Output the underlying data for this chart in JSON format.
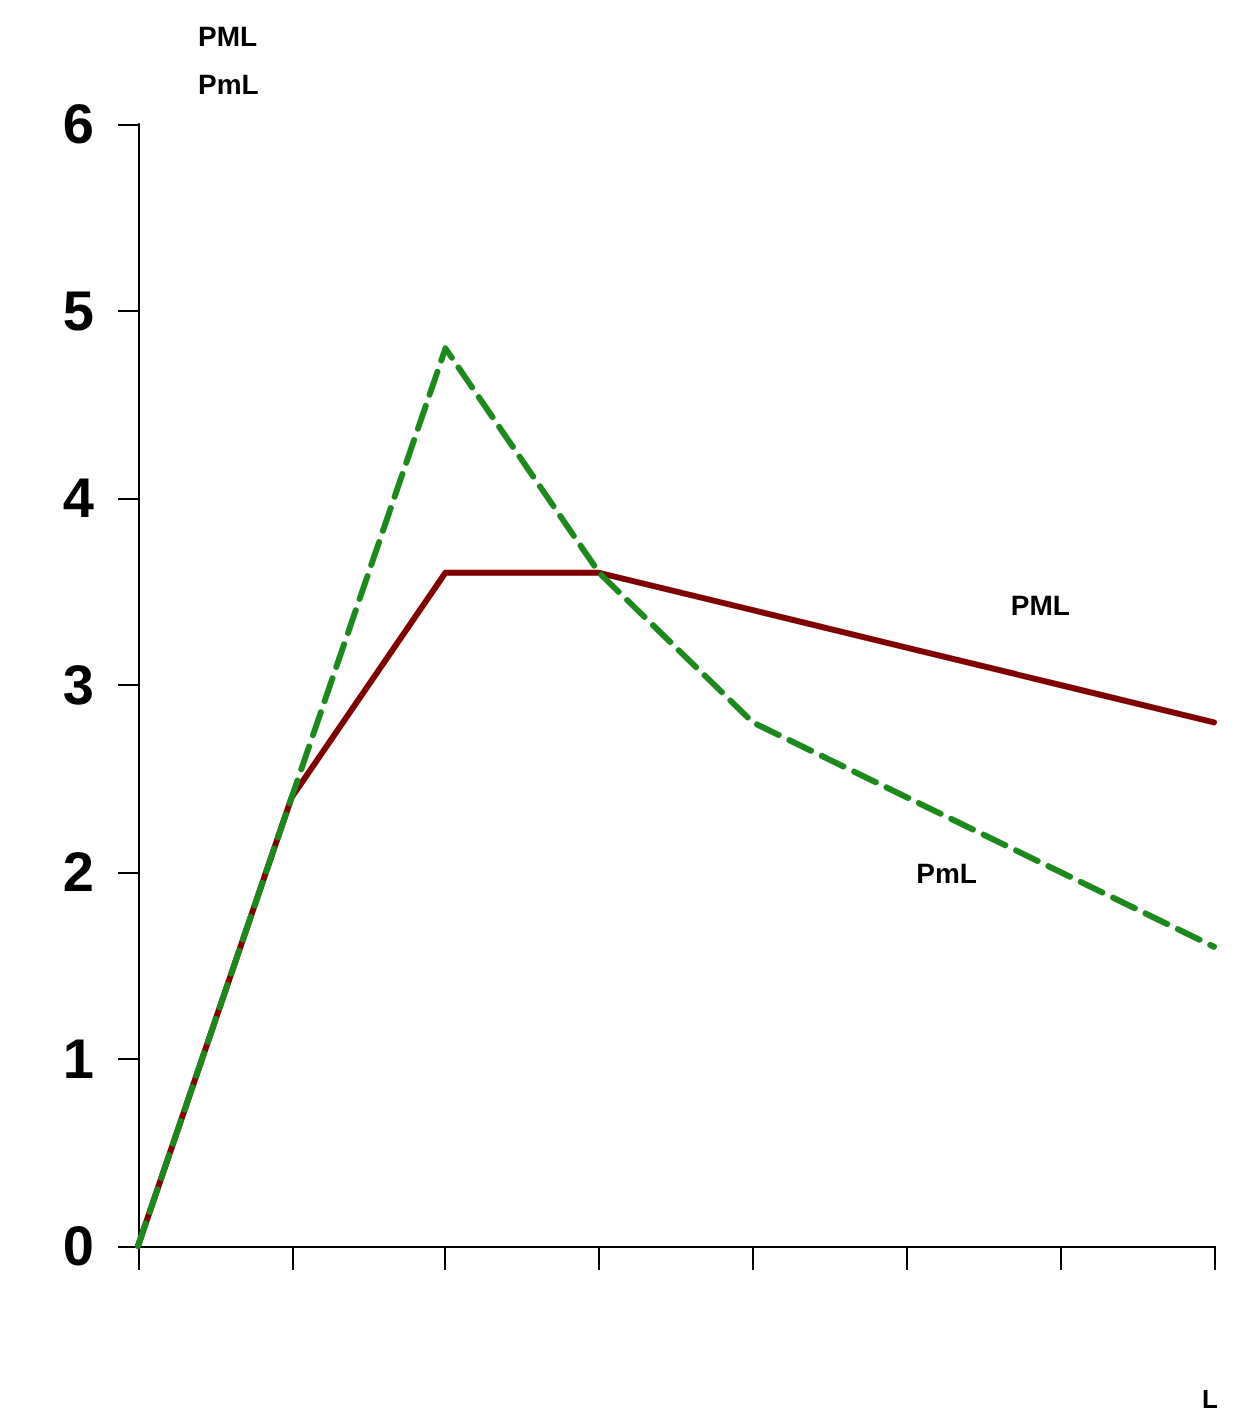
{
  "chart_data": {
    "type": "line",
    "ylabel": "PML\nPmL",
    "xlabel": "L",
    "categories": [
      null,
      null,
      null,
      null,
      null,
      null,
      null,
      null
    ],
    "series": [
      {
        "name": "PML",
        "color": "#800000",
        "line_style": "solid",
        "values": [
          0,
          2.4,
          3.6,
          3.6,
          3.4,
          3.2,
          3.0,
          2.8
        ]
      },
      {
        "name": "PmL",
        "color": "#1a8a1a",
        "line_style": "dashed",
        "values": [
          0,
          2.4,
          4.8,
          3.6,
          2.8,
          2.4,
          2.0,
          1.6
        ]
      }
    ],
    "ylim": [
      0,
      6
    ],
    "yticks": [
      0,
      1,
      2,
      3,
      4,
      5,
      6
    ],
    "tick_labels": "y",
    "grid": false,
    "legend": false,
    "marker": "none"
  }
}
